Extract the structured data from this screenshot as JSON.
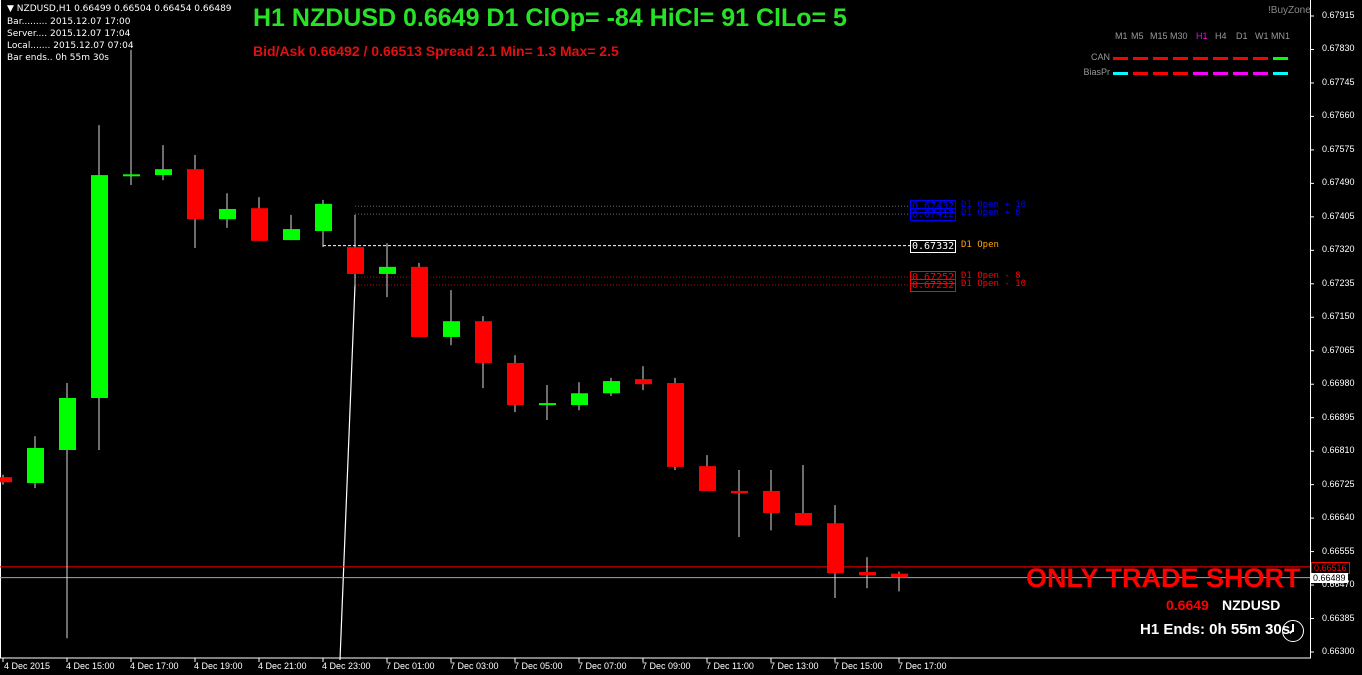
{
  "header": {
    "symbol_line": "NZDUSD,H1  0.66499 0.66504 0.66454 0.66489",
    "info": [
      "Bar......... 2015.12.07 17:00",
      "Server.... 2015.12.07 17:04",
      "Local....... 2015.12.07 07:04",
      "Bar ends.. 0h 55m 30s"
    ]
  },
  "title": "H1 NZDUSD 0.6649 D1 ClOp= -84 HiCl= 91 ClLo= 5",
  "bidask": "Bid/Ask 0.66492 / 0.66513  Spread 2.1  Min= 1.3  Max= 2.5",
  "brand": "!BuyZone",
  "panel": {
    "timeframes": [
      "M1",
      "M5",
      "M15",
      "M30",
      "H1",
      "H4",
      "D1",
      "W1",
      "MN1"
    ],
    "active": "H1",
    "rows": [
      {
        "label": "CAN",
        "colors": [
          "#ff0000",
          "#ff0000",
          "#ff0000",
          "#ff0000",
          "#ff0000",
          "#ff0000",
          "#ff0000",
          "#ff0000",
          "#00ff00"
        ]
      },
      {
        "label": "BiasPr",
        "colors": [
          "#00ffff",
          "#ff0000",
          "#ff0000",
          "#ff0000",
          "#ff00ff",
          "#ff00ff",
          "#ff00ff",
          "#ff00ff",
          "#00ffff"
        ]
      }
    ]
  },
  "levels": [
    {
      "price": "0.67432",
      "label": "D1 Open + 10",
      "color": "#0000ff"
    },
    {
      "price": "0.67412",
      "label": "D1 Open + 8",
      "color": "#0000ff"
    },
    {
      "price": "0.67332",
      "label": "D1 Open",
      "color": "#ffa500"
    },
    {
      "price": "0.67252",
      "label": "D1 Open - 8",
      "color": "#ff0000"
    },
    {
      "price": "0.67232",
      "label": "D1 Open - 10",
      "color": "#ff0000"
    }
  ],
  "ask_tag": "0.66516",
  "bid_tag": "0.66489",
  "signal": "ONLY TRADE SHORT",
  "price_short": "0.6649",
  "symbol": "NZDUSD",
  "bar_ends": "H1 Ends: 0h 55m 30s",
  "colors": {
    "bull": "#00ff00",
    "bear": "#ff0000",
    "background": "#000000"
  },
  "chart_data": {
    "type": "candlestick",
    "y_ticks": [
      "0.67915",
      "0.67830",
      "0.67745",
      "0.67660",
      "0.67575",
      "0.67490",
      "0.67405",
      "0.67320",
      "0.67235",
      "0.67150",
      "0.67065",
      "0.66980",
      "0.66895",
      "0.66810",
      "0.66725",
      "0.66640",
      "0.66555",
      "0.66470",
      "0.66385",
      "0.66300"
    ],
    "ylim": [
      0.663,
      0.67915
    ],
    "x_labels": [
      "4 Dec 2015",
      "4 Dec 15:00",
      "4 Dec 17:00",
      "4 Dec 19:00",
      "4 Dec 21:00",
      "4 Dec 23:00",
      "7 Dec 01:00",
      "7 Dec 03:00",
      "7 Dec 05:00",
      "7 Dec 07:00",
      "7 Dec 09:00",
      "7 Dec 11:00",
      "7 Dec 13:00",
      "7 Dec 15:00",
      "7 Dec 17:00"
    ],
    "candles": [
      {
        "t": "4 Dec 13:00",
        "o": 0.66744,
        "h": 0.6675,
        "l": 0.66725,
        "c": 0.66731
      },
      {
        "t": "4 Dec 14:00",
        "o": 0.66729,
        "h": 0.66848,
        "l": 0.66716,
        "c": 0.66818
      },
      {
        "t": "4 Dec 15:00",
        "o": 0.66813,
        "h": 0.66983,
        "l": 0.66335,
        "c": 0.66945
      },
      {
        "t": "4 Dec 16:00",
        "o": 0.66945,
        "h": 0.67638,
        "l": 0.66813,
        "c": 0.67511
      },
      {
        "t": "4 Dec 17:00",
        "o": 0.67511,
        "h": 0.67829,
        "l": 0.67486,
        "c": 0.67513
      },
      {
        "t": "4 Dec 18:00",
        "o": 0.67511,
        "h": 0.67587,
        "l": 0.67498,
        "c": 0.67526
      },
      {
        "t": "4 Dec 19:00",
        "o": 0.67526,
        "h": 0.67562,
        "l": 0.67326,
        "c": 0.67399
      },
      {
        "t": "4 Dec 20:00",
        "o": 0.67399,
        "h": 0.67465,
        "l": 0.67377,
        "c": 0.67425
      },
      {
        "t": "4 Dec 21:00",
        "o": 0.67427,
        "h": 0.67455,
        "l": 0.67344,
        "c": 0.67344
      },
      {
        "t": "4 Dec 22:00",
        "o": 0.67346,
        "h": 0.6741,
        "l": 0.67346,
        "c": 0.67374
      },
      {
        "t": "4 Dec 23:00",
        "o": 0.67369,
        "h": 0.67448,
        "l": 0.67328,
        "c": 0.67438
      },
      {
        "t": "7 Dec 00:00",
        "o": 0.67328,
        "h": 0.6741,
        "l": 0.67227,
        "c": 0.6726
      },
      {
        "t": "7 Dec 01:00",
        "o": 0.6726,
        "h": 0.67338,
        "l": 0.67201,
        "c": 0.67278
      },
      {
        "t": "7 Dec 02:00",
        "o": 0.67278,
        "h": 0.67288,
        "l": 0.671,
        "c": 0.671
      },
      {
        "t": "7 Dec 03:00",
        "o": 0.671,
        "h": 0.67219,
        "l": 0.67079,
        "c": 0.6714
      },
      {
        "t": "7 Dec 04:00",
        "o": 0.6714,
        "h": 0.67153,
        "l": 0.6697,
        "c": 0.67034
      },
      {
        "t": "7 Dec 05:00",
        "o": 0.67034,
        "h": 0.67054,
        "l": 0.66909,
        "c": 0.66927
      },
      {
        "t": "7 Dec 06:00",
        "o": 0.66927,
        "h": 0.66978,
        "l": 0.66889,
        "c": 0.66932
      },
      {
        "t": "7 Dec 07:00",
        "o": 0.66927,
        "h": 0.66985,
        "l": 0.66914,
        "c": 0.66957
      },
      {
        "t": "7 Dec 08:00",
        "o": 0.66957,
        "h": 0.66996,
        "l": 0.6695,
        "c": 0.66988
      },
      {
        "t": "7 Dec 09:00",
        "o": 0.66993,
        "h": 0.67026,
        "l": 0.66965,
        "c": 0.6698
      },
      {
        "t": "7 Dec 10:00",
        "o": 0.66983,
        "h": 0.66996,
        "l": 0.66762,
        "c": 0.6677
      },
      {
        "t": "7 Dec 11:00",
        "o": 0.66772,
        "h": 0.668,
        "l": 0.66709,
        "c": 0.66709
      },
      {
        "t": "7 Dec 12:00",
        "o": 0.66709,
        "h": 0.66762,
        "l": 0.66592,
        "c": 0.66703
      },
      {
        "t": "7 Dec 13:00",
        "o": 0.66709,
        "h": 0.66762,
        "l": 0.66609,
        "c": 0.66653
      },
      {
        "t": "7 Dec 14:00",
        "o": 0.66653,
        "h": 0.66775,
        "l": 0.66622,
        "c": 0.66622
      },
      {
        "t": "7 Dec 15:00",
        "o": 0.66627,
        "h": 0.66673,
        "l": 0.66437,
        "c": 0.665
      },
      {
        "t": "7 Dec 16:00",
        "o": 0.66503,
        "h": 0.66541,
        "l": 0.66462,
        "c": 0.66495
      },
      {
        "t": "7 Dec 17:00",
        "o": 0.66499,
        "h": 0.66504,
        "l": 0.66454,
        "c": 0.66489
      }
    ]
  }
}
